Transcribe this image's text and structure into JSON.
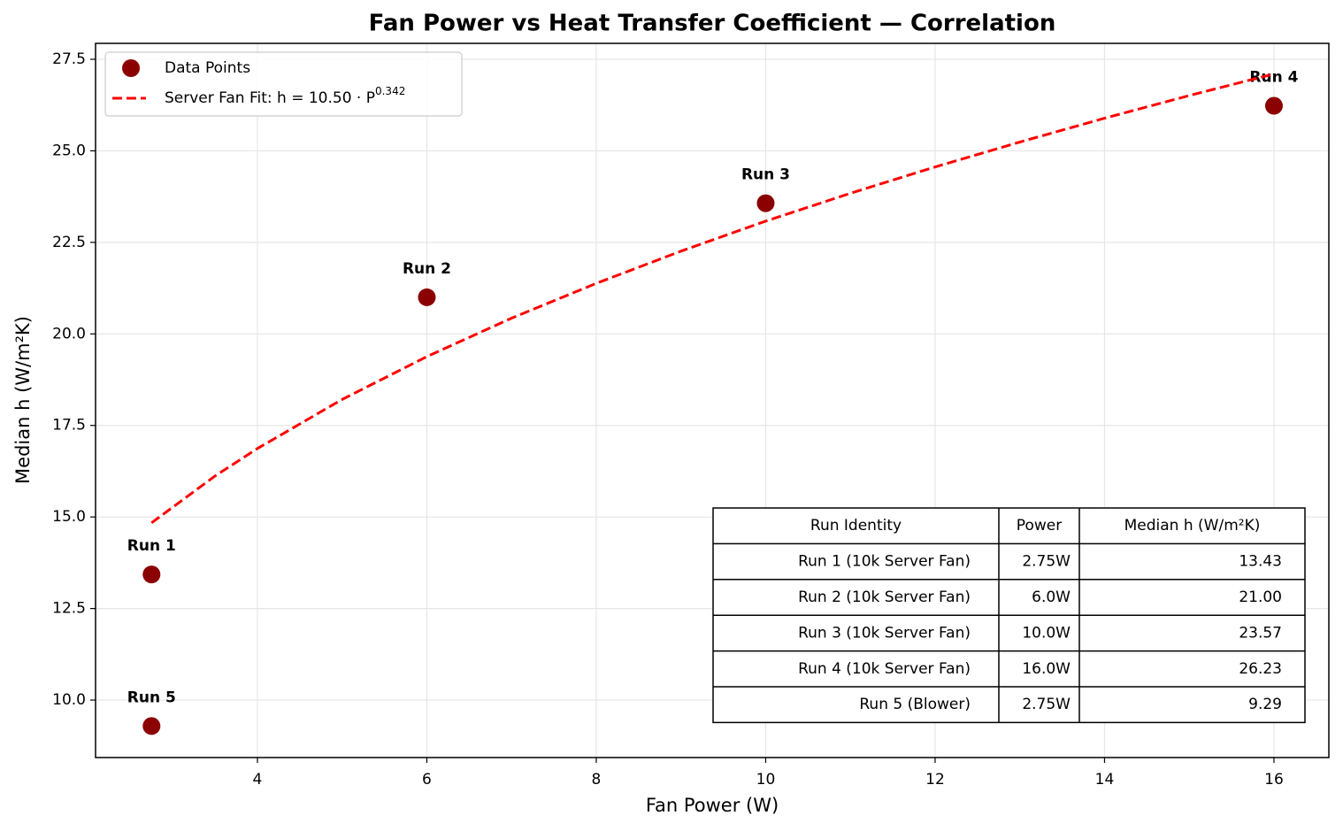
{
  "chart_data": {
    "type": "scatter",
    "title": "Fan Power vs Heat Transfer Coefficient — Correlation",
    "xlabel": "Fan Power (W)",
    "ylabel": "Median h (W/m²K)",
    "xlim": [
      2.089,
      16.648
    ],
    "ylim": [
      8.43,
      27.935
    ],
    "xticks": [
      4,
      6,
      8,
      10,
      12,
      14,
      16
    ],
    "yticks": [
      {
        "value": 10,
        "label": "10.0"
      },
      12.5,
      {
        "value": 15,
        "label": "15.0"
      },
      17.5,
      {
        "value": 20,
        "label": "20.0"
      },
      22.5,
      {
        "value": 25,
        "label": "25.0"
      },
      27.5
    ],
    "grid": true,
    "legend": "upper left",
    "series": [
      {
        "name": "Data Points",
        "kind": "scatter",
        "color": "#8b0000",
        "x": [
          2.75,
          6,
          10,
          16,
          2.75
        ],
        "values": [
          13.43,
          21.0,
          23.57,
          26.23,
          9.29
        ],
        "labels": [
          "Run 1",
          "Run 2",
          "Run 3",
          "Run 4",
          "Run 5"
        ]
      },
      {
        "name": "Server Fan Fit: h = 10.50 · P",
        "name_superscript": "0.342",
        "kind": "line",
        "style": "dashed",
        "color": "#ff0000",
        "x": [
          2.75,
          3.5,
          4,
          5,
          6,
          7,
          8,
          9,
          10,
          11,
          12,
          13,
          14,
          15,
          16
        ],
        "values": [
          14.84,
          16.12,
          16.87,
          18.21,
          19.38,
          20.43,
          21.38,
          22.26,
          23.08,
          23.84,
          24.56,
          25.24,
          25.89,
          26.51,
          27.1
        ]
      }
    ],
    "table": {
      "columns": [
        "Run Identity",
        "Power",
        "Median h (W/m²K)"
      ],
      "rows": [
        [
          "Run 1 (10k Server Fan)",
          "2.75W",
          "13.43"
        ],
        [
          "Run 2 (10k Server Fan)",
          "6.0W",
          "21.00"
        ],
        [
          "Run 3 (10k Server Fan)",
          "10.0W",
          "23.57"
        ],
        [
          "Run 4 (10k Server Fan)",
          "16.0W",
          "26.23"
        ],
        [
          "Run 5 (Blower)",
          "2.75W",
          "9.29"
        ]
      ]
    }
  }
}
